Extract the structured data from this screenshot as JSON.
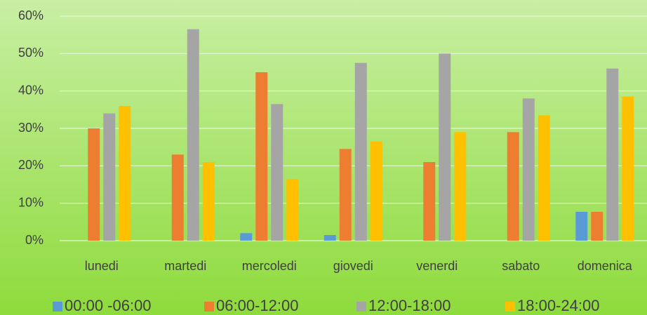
{
  "chart_data": {
    "type": "bar",
    "categories": [
      "lunedi",
      "martedi",
      "mercoledi",
      "giovedi",
      "venerdi",
      "sabato",
      "domenica"
    ],
    "series": [
      {
        "name": "00:00 -06:00",
        "color": "#5b9bd5",
        "values": [
          0,
          0,
          2,
          1.5,
          0,
          0,
          7.7
        ]
      },
      {
        "name": "06:00-12:00",
        "color": "#ed7d31",
        "values": [
          30,
          23,
          45,
          24.5,
          21,
          29,
          7.7
        ]
      },
      {
        "name": "12:00-18:00",
        "color": "#a5a5a5",
        "values": [
          34,
          56.5,
          36.5,
          47.5,
          50,
          38,
          46
        ]
      },
      {
        "name": "18:00-24:00",
        "color": "#ffc000",
        "values": [
          36,
          21,
          16.5,
          26.5,
          29,
          33.5,
          38.5
        ]
      }
    ],
    "ylim": [
      0,
      60
    ],
    "yticks": [
      {
        "value": 0,
        "label": "0%"
      },
      {
        "value": 10,
        "label": "10%"
      },
      {
        "value": 20,
        "label": "20%"
      },
      {
        "value": 30,
        "label": "30%"
      },
      {
        "value": 40,
        "label": "40%"
      },
      {
        "value": 50,
        "label": "50%"
      },
      {
        "value": 60,
        "label": "60%"
      }
    ],
    "grid": true,
    "legend": "bottom"
  }
}
